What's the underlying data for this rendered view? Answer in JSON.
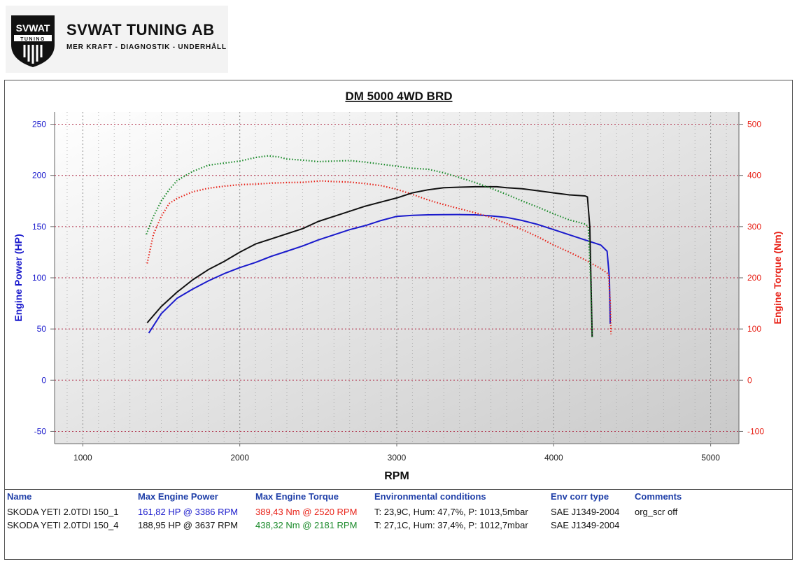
{
  "logo": {
    "badge_top": "SVWAT",
    "badge_bottom": "TUNING",
    "name": "SVWAT TUNING AB",
    "tagline": "MER KRAFT - DIAGNOSTIK - UNDERHÅLL"
  },
  "chart_data": {
    "type": "line",
    "title": "DM 5000 4WD BRD",
    "xlabel": "RPM",
    "ylabel_left": "Engine Power (HP)",
    "ylabel_right": "Engine Torque (Nm)",
    "xlim": [
      820,
      5180
    ],
    "ylim_left": [
      -62,
      262
    ],
    "ylim_right": [
      -124,
      524
    ],
    "x_ticks": [
      1000,
      2000,
      3000,
      4000,
      5000
    ],
    "y_ticks_left": [
      -50,
      0,
      50,
      100,
      150,
      200,
      250
    ],
    "y_ticks_right": [
      -100,
      0,
      100,
      200,
      300,
      400,
      500
    ],
    "grid": true,
    "series": [
      {
        "name": "SKODA YETI 2.0TDI 150_1",
        "quantity": "power",
        "axis": "left",
        "color": "#1a1acc",
        "style": "solid",
        "x": [
          1420,
          1500,
          1600,
          1700,
          1800,
          1900,
          2000,
          2100,
          2200,
          2300,
          2400,
          2500,
          2600,
          2700,
          2800,
          2900,
          3000,
          3100,
          3200,
          3300,
          3386,
          3500,
          3600,
          3700,
          3800,
          3900,
          4000,
          4100,
          4200,
          4300,
          4340,
          4355,
          4360
        ],
        "y": [
          46,
          65,
          80,
          89,
          97,
          104,
          110,
          115,
          121,
          126,
          131,
          137,
          142,
          147,
          151,
          156,
          160,
          161,
          161.5,
          161.7,
          161.8,
          161.5,
          160.5,
          159,
          156,
          152,
          147,
          142,
          137,
          132,
          126,
          100,
          55
        ]
      },
      {
        "name": "SKODA YETI 2.0TDI 150_1",
        "quantity": "torque",
        "axis": "right",
        "color": "#e8241a",
        "style": "dotted",
        "x": [
          1410,
          1450,
          1500,
          1550,
          1600,
          1700,
          1800,
          1900,
          2000,
          2100,
          2200,
          2300,
          2400,
          2500,
          2520,
          2600,
          2700,
          2800,
          2900,
          3000,
          3100,
          3200,
          3300,
          3400,
          3500,
          3600,
          3700,
          3800,
          3900,
          4000,
          4100,
          4200,
          4300,
          4350,
          4360,
          4365
        ],
        "y": [
          228,
          285,
          320,
          345,
          355,
          368,
          375,
          379,
          382,
          383,
          385,
          386,
          386.5,
          389,
          389.4,
          388,
          387,
          384,
          380,
          373,
          363,
          352,
          343,
          335,
          327,
          318,
          306,
          294,
          280,
          264,
          250,
          235,
          218,
          207,
          150,
          90
        ]
      },
      {
        "name": "SKODA YETI 2.0TDI 150_4",
        "quantity": "power",
        "axis": "left",
        "color": "#111111",
        "style": "solid",
        "x": [
          1410,
          1500,
          1600,
          1700,
          1800,
          1900,
          2000,
          2100,
          2200,
          2300,
          2400,
          2500,
          2600,
          2700,
          2800,
          2900,
          3000,
          3100,
          3200,
          3300,
          3400,
          3500,
          3637,
          3700,
          3800,
          3900,
          4000,
          4100,
          4200,
          4215,
          4230,
          4240,
          4245
        ],
        "y": [
          56,
          72,
          86,
          98,
          108,
          116,
          125,
          133,
          138,
          143,
          148,
          155,
          160,
          165,
          170,
          174,
          178,
          183,
          186,
          188,
          188.5,
          188.9,
          188.95,
          188,
          187,
          185,
          183,
          181,
          180,
          179,
          150,
          80,
          42
        ]
      },
      {
        "name": "SKODA YETI 2.0TDI 150_4",
        "quantity": "torque",
        "axis": "right",
        "color": "#1a8a2a",
        "style": "dotted",
        "x": [
          1405,
          1450,
          1500,
          1550,
          1600,
          1700,
          1800,
          1900,
          2000,
          2100,
          2181,
          2250,
          2300,
          2400,
          2500,
          2600,
          2700,
          2800,
          2900,
          3000,
          3100,
          3200,
          3300,
          3400,
          3500,
          3600,
          3700,
          3800,
          3900,
          4000,
          4100,
          4200,
          4220,
          4235,
          4245
        ],
        "y": [
          285,
          320,
          350,
          372,
          390,
          408,
          420,
          424,
          428,
          435,
          438.3,
          436,
          432,
          430,
          427,
          428,
          429,
          426,
          422,
          418,
          414,
          412,
          405,
          396,
          386,
          375,
          363,
          350,
          338,
          325,
          313,
          305,
          300,
          200,
          82
        ]
      }
    ]
  },
  "table": {
    "headers": [
      "Name",
      "Max Engine Power",
      "Max Engine Torque",
      "Environmental conditions",
      "Env corr type",
      "Comments"
    ],
    "rows": [
      [
        "SKODA YETI 2.0TDI 150_1",
        "161,82 HP @ 3386 RPM",
        "389,43 Nm @ 2520 RPM",
        "T: 23,9C, Hum: 47,7%, P: 1013,5mbar",
        "SAE J1349-2004",
        "org_scr off"
      ],
      [
        "SKODA YETI 2.0TDI 150_4",
        "188,95 HP @ 3637 RPM",
        "438,32 Nm @ 2181 RPM",
        "T: 27,1C, Hum: 37,4%, P: 1012,7mbar",
        "SAE J1349-2004",
        ""
      ]
    ]
  }
}
